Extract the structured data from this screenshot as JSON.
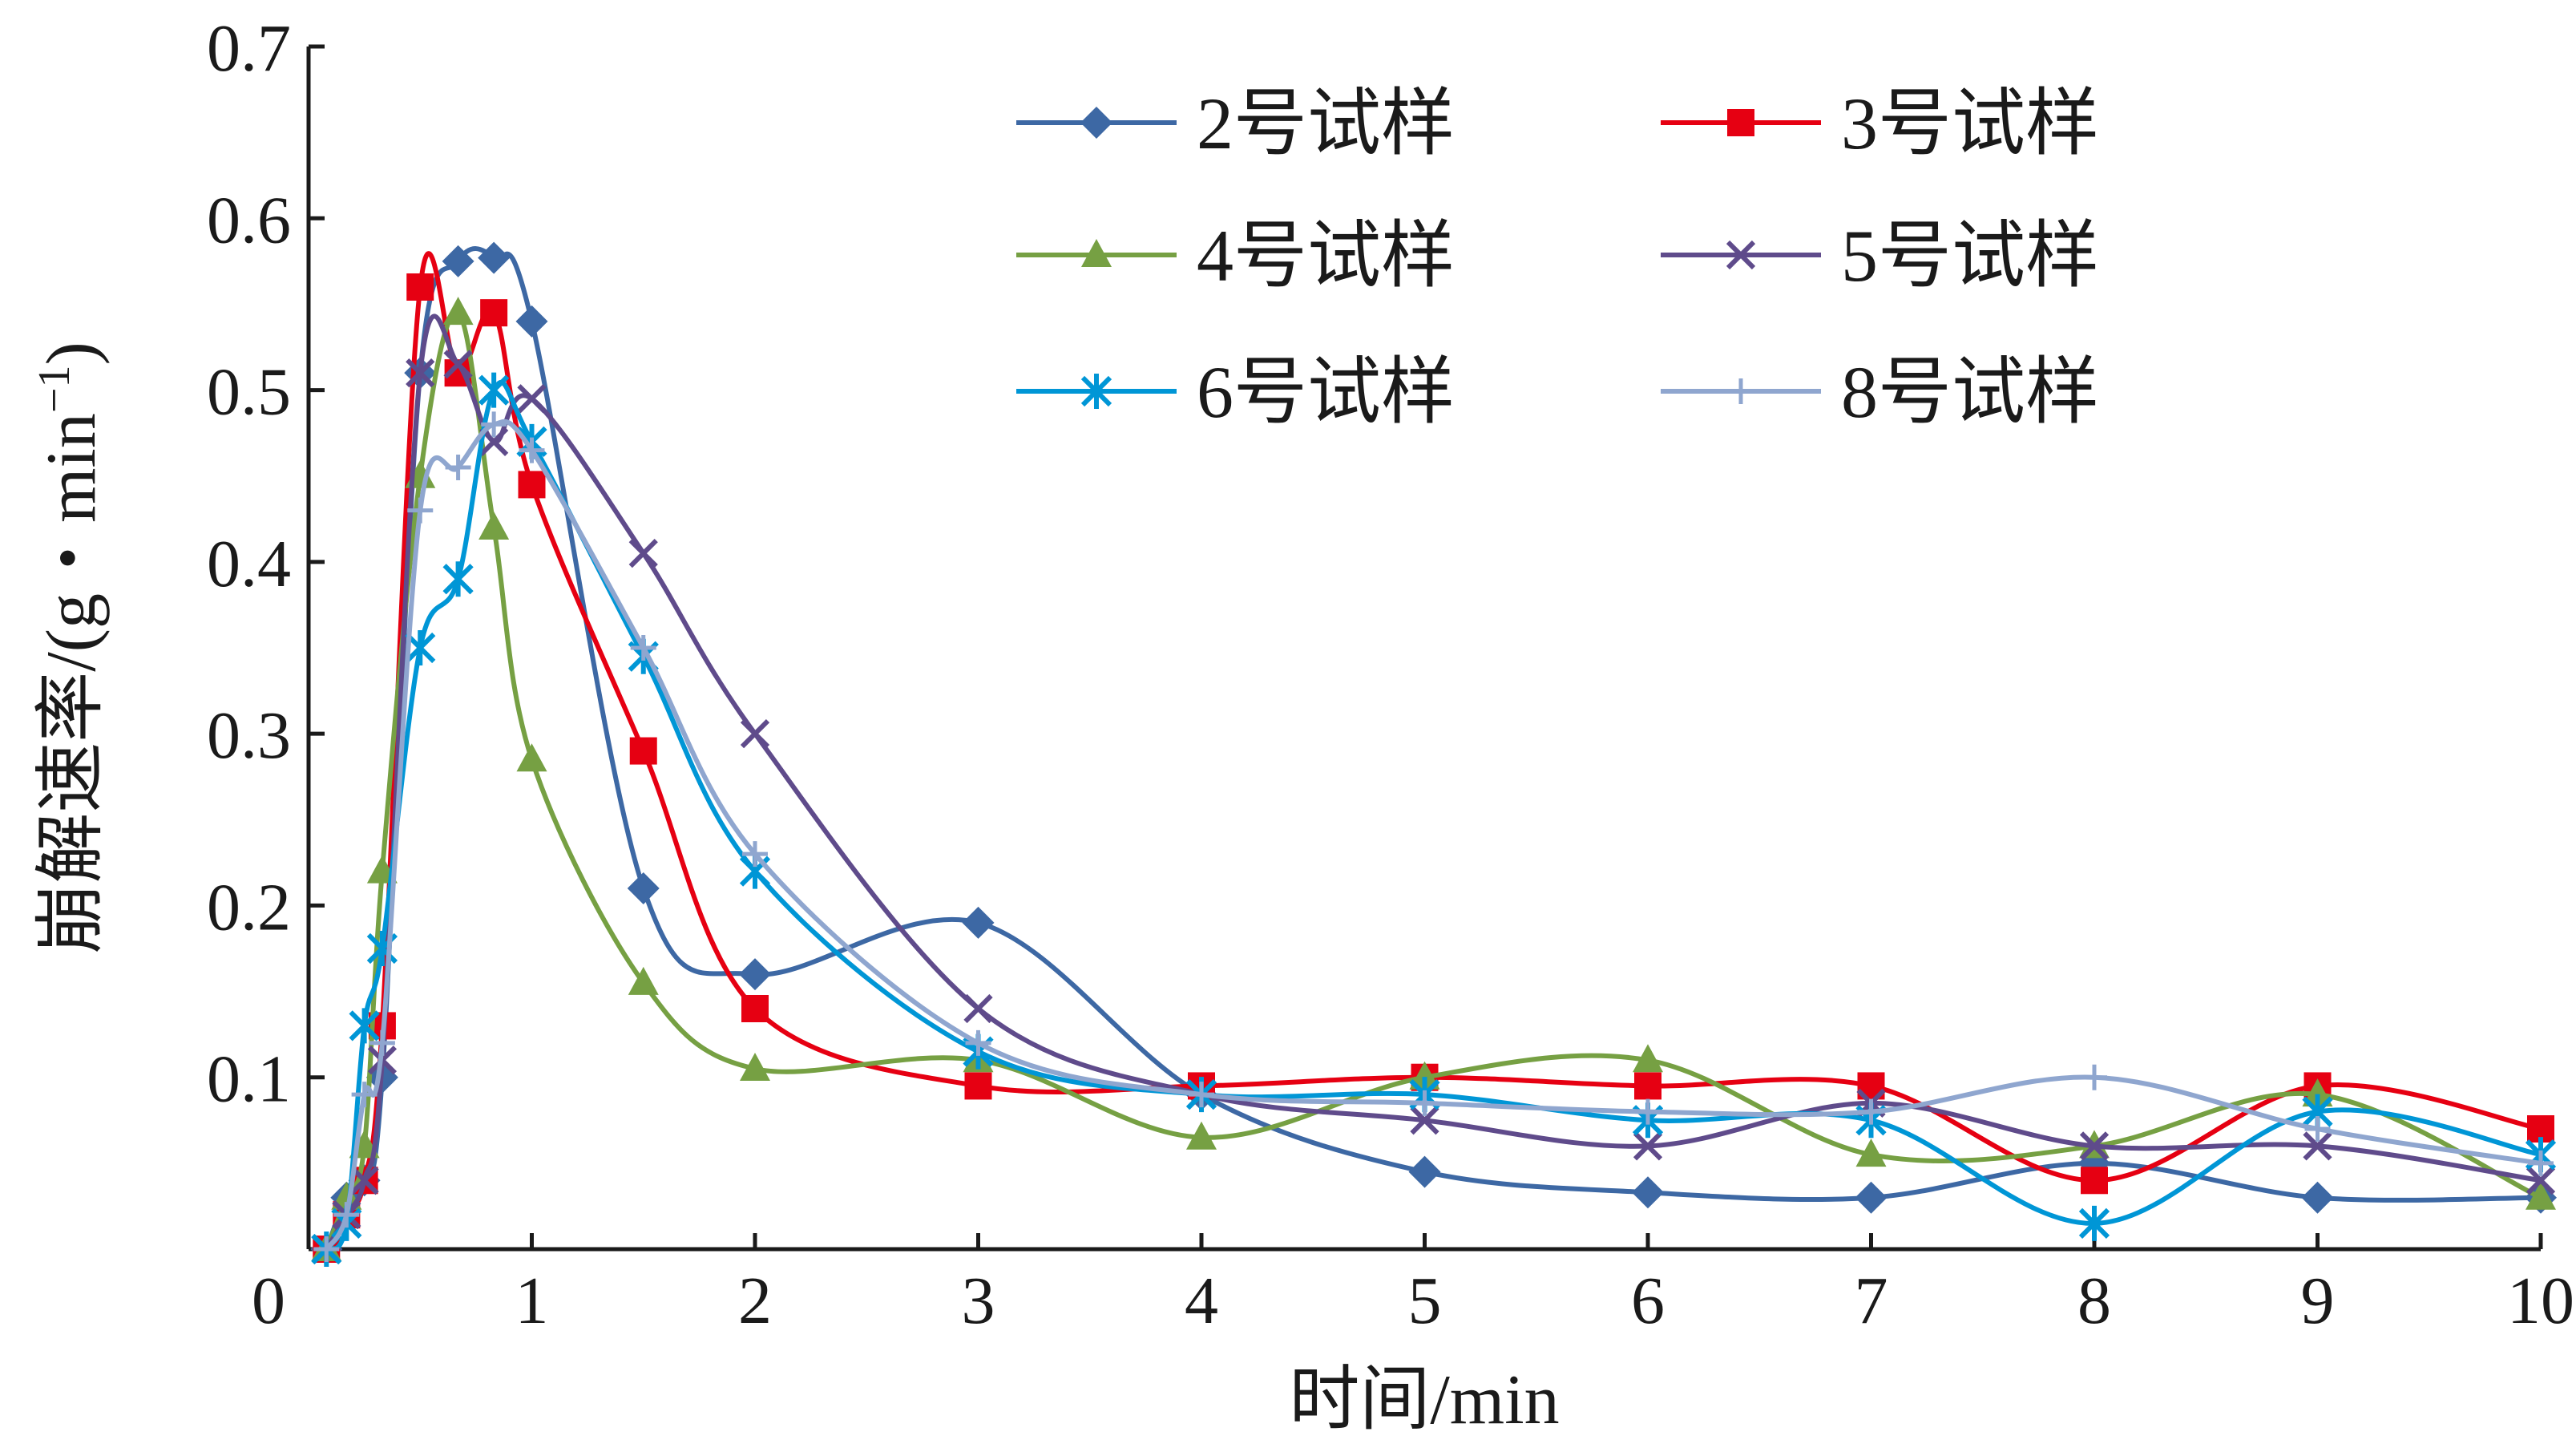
{
  "chart_data": {
    "type": "line",
    "smooth": true,
    "grid": false,
    "legend_position": "top-right",
    "xlabel": "时间/min",
    "ylabel": "崩解速率/(g・min",
    "ylabel_sup": "−1",
    "ylabel_close": ")",
    "xlim": [
      0,
      10
    ],
    "ylim": [
      0,
      0.7
    ],
    "x_ticks": [
      "0",
      "1",
      "2",
      "3",
      "4",
      "5",
      "6",
      "7",
      "8",
      "9",
      "10"
    ],
    "y_ticks": [
      "0.1",
      "0.2",
      "0.3",
      "0.4",
      "0.5",
      "0.6",
      "0.7"
    ],
    "y_tick_values": [
      0.1,
      0.2,
      0.3,
      0.4,
      0.5,
      0.6,
      0.7
    ],
    "x": [
      0.17,
      0.33,
      0.5,
      0.67,
      0.83,
      1,
      1.5,
      2,
      3,
      4,
      5,
      6,
      7,
      8,
      9,
      10
    ],
    "series": [
      {
        "name": "2号试样",
        "color": "#3d68a4",
        "marker": "diamond",
        "x": [
          0.08,
          0.17,
          0.25,
          0.33,
          0.5,
          0.67,
          0.83,
          1,
          1.5,
          2,
          3,
          4,
          5,
          6,
          7,
          8,
          9,
          10
        ],
        "values": [
          0,
          0.03,
          0.04,
          0.1,
          0.51,
          0.575,
          0.577,
          0.54,
          0.21,
          0.16,
          0.19,
          0.09,
          0.045,
          0.033,
          0.03,
          0.05,
          0.03,
          0.03
        ]
      },
      {
        "name": "3号试样",
        "color": "#e60012",
        "marker": "square",
        "x": [
          0.08,
          0.17,
          0.25,
          0.33,
          0.5,
          0.67,
          0.83,
          1,
          1.5,
          2,
          3,
          4,
          5,
          6,
          7,
          8,
          9,
          10
        ],
        "values": [
          0,
          0.02,
          0.04,
          0.13,
          0.56,
          0.51,
          0.545,
          0.445,
          0.29,
          0.14,
          0.095,
          0.095,
          0.1,
          0.095,
          0.095,
          0.04,
          0.095,
          0.07
        ]
      },
      {
        "name": "4号试样",
        "color": "#76a043",
        "marker": "triangle",
        "x": [
          0.08,
          0.17,
          0.25,
          0.33,
          0.5,
          0.67,
          0.83,
          1,
          1.5,
          2,
          3,
          4,
          5,
          6,
          7,
          8,
          9,
          10
        ],
        "values": [
          0,
          0.03,
          0.06,
          0.22,
          0.45,
          0.545,
          0.42,
          0.285,
          0.155,
          0.105,
          0.11,
          0.065,
          0.1,
          0.11,
          0.055,
          0.06,
          0.09,
          0.03
        ]
      },
      {
        "name": "5号试样",
        "color": "#5f4b8b",
        "marker": "x",
        "x": [
          0.08,
          0.17,
          0.25,
          0.33,
          0.5,
          0.67,
          0.83,
          1,
          1.5,
          2,
          3,
          4,
          5,
          6,
          7,
          8,
          9,
          10
        ],
        "values": [
          0,
          0.02,
          0.04,
          0.11,
          0.51,
          0.515,
          0.47,
          0.495,
          0.405,
          0.3,
          0.14,
          0.09,
          0.075,
          0.06,
          0.085,
          0.06,
          0.06,
          0.04
        ]
      },
      {
        "name": "6号试样",
        "color": "#0096d6",
        "marker": "star",
        "x": [
          0.08,
          0.17,
          0.25,
          0.33,
          0.5,
          0.67,
          0.83,
          1,
          1.5,
          2,
          3,
          4,
          5,
          6,
          7,
          8,
          9,
          10
        ],
        "values": [
          0,
          0.015,
          0.13,
          0.175,
          0.35,
          0.39,
          0.5,
          0.47,
          0.345,
          0.22,
          0.115,
          0.09,
          0.09,
          0.075,
          0.075,
          0.015,
          0.08,
          0.055
        ]
      },
      {
        "name": "8号试样",
        "color": "#8fa6cf",
        "marker": "plus",
        "x": [
          0.08,
          0.17,
          0.25,
          0.33,
          0.5,
          0.67,
          0.83,
          1,
          1.5,
          2,
          3,
          4,
          5,
          6,
          7,
          8,
          9,
          10
        ],
        "values": [
          0,
          0.02,
          0.09,
          0.12,
          0.43,
          0.455,
          0.48,
          0.465,
          0.35,
          0.23,
          0.12,
          0.09,
          0.085,
          0.08,
          0.08,
          0.1,
          0.07,
          0.05
        ]
      }
    ]
  }
}
